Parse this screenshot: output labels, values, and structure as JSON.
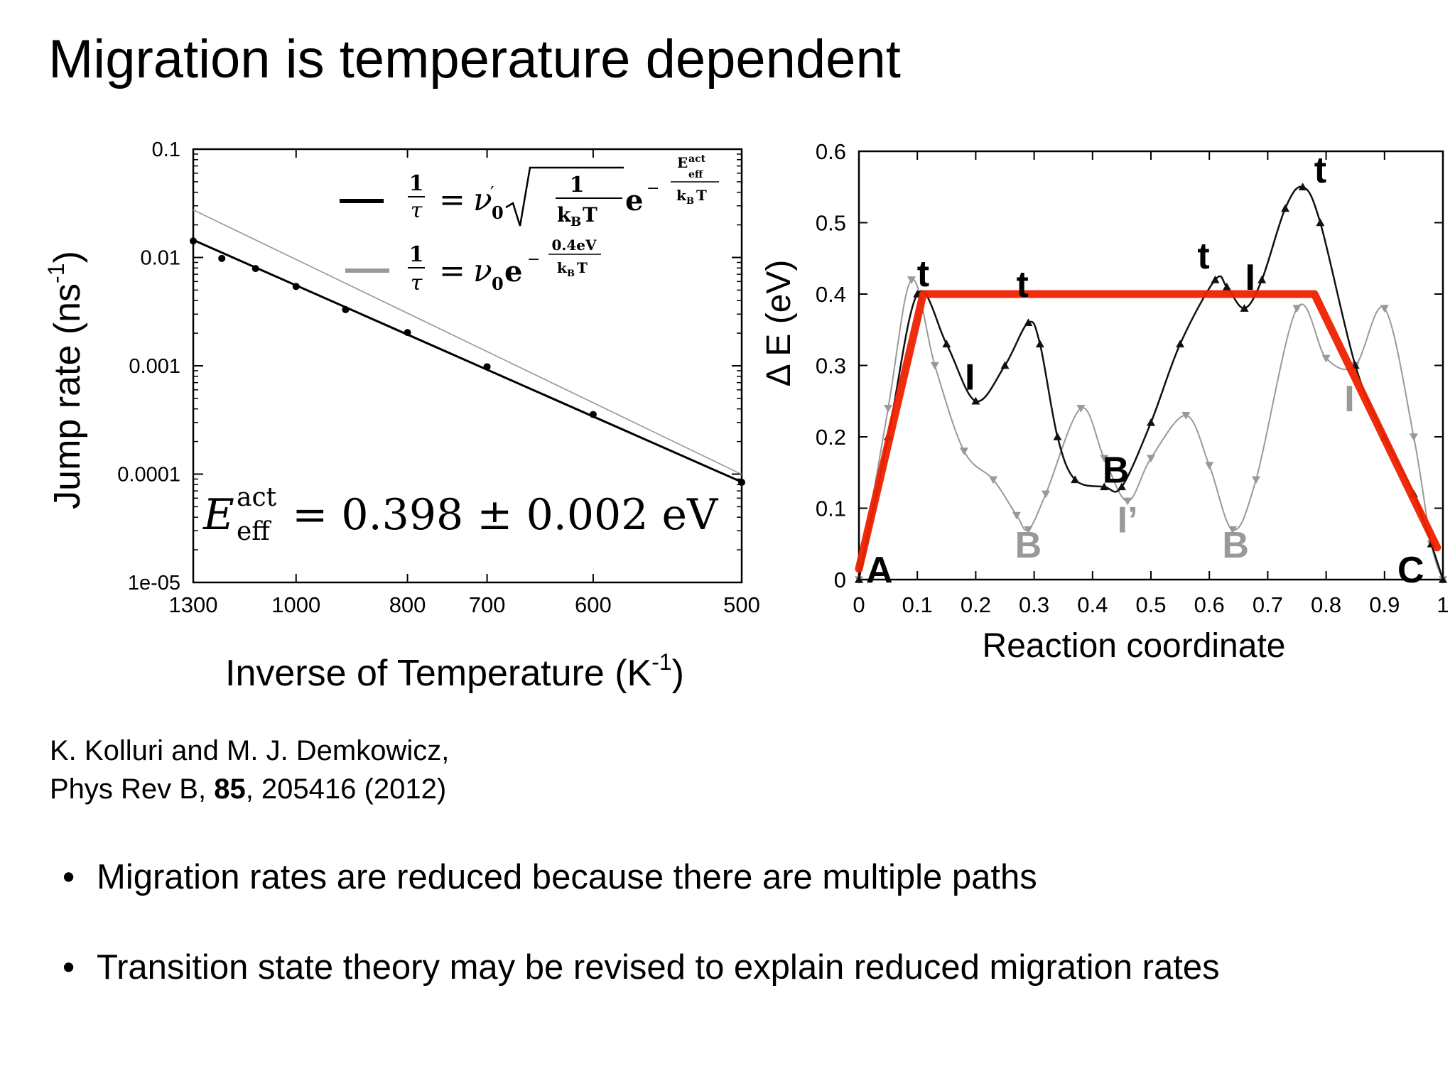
{
  "slide": {
    "title": "Migration is temperature dependent",
    "reference": {
      "line1": "K. Kolluri and M. J. Demkowicz,",
      "line2_pre": "Phys Rev B, ",
      "line2_bold": "85",
      "line2_post": ", 205416 (2012)"
    },
    "bullets": [
      {
        "symbol": "•",
        "text": "Migration rates are reduced because there are multiple paths"
      },
      {
        "symbol": "•",
        "text": "Transition state theory may be revised to explain reduced migration rates"
      }
    ]
  },
  "chart_data": [
    {
      "type": "scatter",
      "title": "",
      "xlabel": "Inverse of Temperature (K",
      "xlabel_sup": "-1",
      "xlabel_end": ")",
      "ylabel": "Jump rate (ns",
      "ylabel_sup": "-1",
      "ylabel_end": ")",
      "x_scale": "reciprocal",
      "y_scale": "log",
      "xlim": [
        1300,
        500
      ],
      "ylim": [
        1e-05,
        0.1
      ],
      "x_ticks": [
        1300,
        1000,
        800,
        700,
        600,
        500
      ],
      "x_tick_labels": [
        "1300",
        "1000",
        "800",
        "700",
        "600",
        "500"
      ],
      "y_ticks": [
        1e-05,
        0.0001,
        0.001,
        0.01,
        0.1
      ],
      "y_tick_labels": [
        "1e-05",
        "0.0001",
        "0.001",
        "0.01",
        "0.1"
      ],
      "legend_position": "top-right",
      "colors": {
        "fit": "#000000",
        "reference": "#999999"
      },
      "series": [
        {
          "kind": "points",
          "x": [
            1300,
            1200,
            1100,
            1000,
            900,
            800,
            700,
            600,
            500
          ],
          "y": [
            0.0142,
            0.0098,
            0.0079,
            0.0054,
            0.0033,
            0.00203,
            0.00098,
            0.000355,
            8.4e-05
          ]
        },
        {
          "kind": "line",
          "x": [
            1300,
            500
          ],
          "y": [
            0.0145,
            8.45e-05
          ]
        },
        {
          "kind": "line",
          "x": [
            1300,
            500
          ],
          "y": [
            0.0275,
            9.95e-05
          ]
        }
      ],
      "legend": [
        {
          "color": "#000000",
          "formula": "fit"
        },
        {
          "color": "#999999",
          "formula": "reference"
        }
      ],
      "annotation": {
        "E": "E",
        "sup": "act",
        "sub": "eff",
        "text": " = 0.398 ± 0.002 eV"
      }
    },
    {
      "type": "line",
      "title": "",
      "xlabel": "Reaction coordinate",
      "ylabel": "Δ E (eV)",
      "xlim": [
        0,
        1
      ],
      "ylim": [
        0,
        0.6
      ],
      "x_ticks": [
        0,
        0.1,
        0.2,
        0.3,
        0.4,
        0.5,
        0.6,
        0.7,
        0.8,
        0.9,
        1
      ],
      "x_tick_labels": [
        "0",
        "0.1",
        "0.2",
        "0.3",
        "0.4",
        "0.5",
        "0.6",
        "0.7",
        "0.8",
        "0.9",
        "1"
      ],
      "y_ticks": [
        0,
        0.1,
        0.2,
        0.3,
        0.4,
        0.5,
        0.6
      ],
      "y_tick_labels": [
        "0",
        "0.1",
        "0.2",
        "0.3",
        "0.4",
        "0.5",
        "0.6"
      ],
      "colors": {
        "black_path": "#111111",
        "gray_path": "#9a9a9a",
        "effective": "#ee2200"
      },
      "series": [
        {
          "color": "#999999",
          "marker": "triangle-down",
          "x": [
            0,
            0.05,
            0.09,
            0.13,
            0.18,
            0.23,
            0.27,
            0.29,
            0.32,
            0.38,
            0.42,
            0.46,
            0.5,
            0.56,
            0.6,
            0.64,
            0.68,
            0.75,
            0.8,
            0.85,
            0.9,
            0.95,
            0.98,
            1.0
          ],
          "y": [
            0.0,
            0.24,
            0.42,
            0.3,
            0.18,
            0.14,
            0.09,
            0.07,
            0.12,
            0.24,
            0.17,
            0.11,
            0.17,
            0.23,
            0.16,
            0.07,
            0.14,
            0.38,
            0.31,
            0.3,
            0.38,
            0.2,
            0.05,
            0.0
          ]
        },
        {
          "color": "#111111",
          "marker": "triangle-up",
          "x": [
            0,
            0.05,
            0.1,
            0.15,
            0.2,
            0.25,
            0.29,
            0.31,
            0.34,
            0.37,
            0.42,
            0.45,
            0.5,
            0.55,
            0.61,
            0.63,
            0.66,
            0.69,
            0.73,
            0.76,
            0.79,
            0.85,
            0.9,
            0.95,
            0.98,
            1.0
          ],
          "y": [
            0.0,
            0.2,
            0.4,
            0.33,
            0.25,
            0.3,
            0.36,
            0.33,
            0.2,
            0.14,
            0.13,
            0.13,
            0.22,
            0.33,
            0.42,
            0.41,
            0.38,
            0.42,
            0.52,
            0.55,
            0.5,
            0.3,
            0.2,
            0.12,
            0.05,
            0.0
          ]
        },
        {
          "color": "#ee2200",
          "marker": "none",
          "x": [
            0,
            0.11,
            0.78,
            0.99
          ],
          "y": [
            0.015,
            0.4,
            0.4,
            0.045
          ]
        }
      ],
      "labels": [
        {
          "text": "A",
          "x": 0.035,
          "y": 0.0,
          "color": "#000000"
        },
        {
          "text": "t",
          "x": 0.11,
          "y": 0.415,
          "color": "#000000"
        },
        {
          "text": "t",
          "x": 0.28,
          "y": 0.4,
          "color": "#000000"
        },
        {
          "text": "I",
          "x": 0.19,
          "y": 0.27,
          "color": "#000000"
        },
        {
          "text": "B",
          "x": 0.44,
          "y": 0.14,
          "color": "#000000"
        },
        {
          "text": "t",
          "x": 0.59,
          "y": 0.44,
          "color": "#000000"
        },
        {
          "text": "I",
          "x": 0.67,
          "y": 0.41,
          "color": "#000000"
        },
        {
          "text": "t",
          "x": 0.79,
          "y": 0.56,
          "color": "#000000"
        },
        {
          "text": "C",
          "x": 0.945,
          "y": 0.0,
          "color": "#000000"
        },
        {
          "text": "B",
          "x": 0.29,
          "y": 0.035,
          "color": "#999999"
        },
        {
          "text": "I’",
          "x": 0.46,
          "y": 0.07,
          "color": "#999999"
        },
        {
          "text": "B",
          "x": 0.645,
          "y": 0.035,
          "color": "#999999"
        },
        {
          "text": "I",
          "x": 0.84,
          "y": 0.24,
          "color": "#999999"
        }
      ]
    }
  ]
}
